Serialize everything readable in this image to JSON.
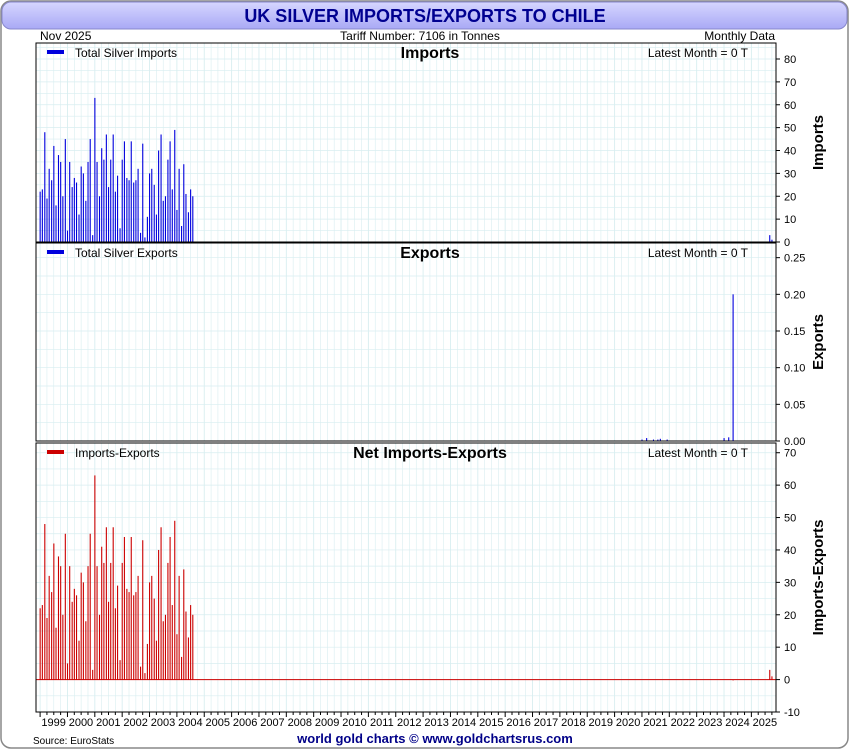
{
  "header": {
    "title": "UK SILVER IMPORTS/EXPORTS TO CHILE",
    "date": "Nov  2025",
    "tariff": "Tariff Number: 7106 in Tonnes",
    "frequency": "Monthly Data"
  },
  "footer": {
    "source": "Source: EuroStats",
    "credit": "world gold charts © www.goldchartsrus.com"
  },
  "colors": {
    "title_bar": "#b8b8ff",
    "title_text": "#000090",
    "imports": "#0000dd",
    "exports": "#0000dd",
    "net": "#cc0000",
    "grid": "#d8eef0"
  },
  "chart_data": [
    {
      "type": "bar",
      "title": "Imports",
      "ylabel": "Imports",
      "legend": "Total Silver Imports",
      "legend_position": "top-left",
      "latest": "Latest Month = 0 T",
      "ylim": [
        0,
        87
      ],
      "yticks": [
        0,
        10,
        20,
        30,
        40,
        50,
        60,
        70,
        80
      ],
      "grid": true,
      "x": [
        1999.0,
        1999.08,
        1999.17,
        1999.25,
        1999.33,
        1999.42,
        1999.5,
        1999.58,
        1999.67,
        1999.75,
        1999.83,
        1999.92,
        2000.0,
        2000.08,
        2000.17,
        2000.25,
        2000.33,
        2000.42,
        2000.5,
        2000.58,
        2000.67,
        2000.75,
        2000.83,
        2000.92,
        2001.0,
        2001.08,
        2001.17,
        2001.25,
        2001.33,
        2001.42,
        2001.5,
        2001.58,
        2001.67,
        2001.75,
        2001.83,
        2001.92,
        2002.0,
        2002.08,
        2002.17,
        2002.25,
        2002.33,
        2002.42,
        2002.5,
        2002.58,
        2002.67,
        2002.75,
        2002.83,
        2002.92,
        2003.0,
        2003.08,
        2003.17,
        2003.25,
        2003.33,
        2003.42,
        2003.5,
        2003.58,
        2003.67,
        2003.75,
        2003.83,
        2003.92,
        2004.0,
        2004.08,
        2004.17,
        2004.25,
        2004.33,
        2004.42,
        2004.5,
        2004.58,
        2025.67,
        2025.75
      ],
      "values": [
        22,
        23,
        48,
        19,
        32,
        27,
        42,
        16,
        38,
        35,
        20,
        45,
        5,
        35,
        24,
        28,
        26,
        12,
        33,
        30,
        18,
        35,
        45,
        3,
        63,
        35,
        20,
        41,
        36,
        47,
        24,
        36,
        47,
        22,
        29,
        6,
        36,
        44,
        28,
        27,
        44,
        26,
        27,
        32,
        4,
        43,
        2,
        11,
        30,
        32,
        25,
        12,
        40,
        47,
        18,
        20,
        36,
        44,
        23,
        49,
        14,
        32,
        7,
        34,
        21,
        13,
        23,
        20,
        3,
        1
      ]
    },
    {
      "type": "bar",
      "title": "Exports",
      "ylabel": "Exports",
      "legend": "Total Silver Exports",
      "legend_position": "top-left",
      "latest": "Latest Month = 0 T",
      "ylim": [
        0,
        0.27
      ],
      "yticks": [
        0.0,
        0.05,
        0.1,
        0.15,
        0.2,
        0.25
      ],
      "ytick_labels": [
        "0.00",
        "0.05",
        "0.10",
        "0.15",
        "0.20",
        "0.25"
      ],
      "grid": true,
      "x": [
        2021.0,
        2021.17,
        2021.42,
        2021.58,
        2021.67,
        2021.92,
        2024.0,
        2024.17,
        2024.33
      ],
      "values": [
        0.002,
        0.004,
        0.002,
        0.002,
        0.003,
        0.002,
        0.004,
        0.005,
        0.2
      ]
    },
    {
      "type": "bar",
      "title": "Net Imports-Exports",
      "ylabel": "Imports-Exports",
      "legend": "Imports-Exports",
      "legend_position": "top-left",
      "latest": "Latest Month = 0 T",
      "ylim": [
        -10,
        73
      ],
      "yticks": [
        -10,
        0,
        10,
        20,
        30,
        40,
        50,
        60,
        70
      ],
      "grid": true,
      "x": [
        1999.0,
        1999.08,
        1999.17,
        1999.25,
        1999.33,
        1999.42,
        1999.5,
        1999.58,
        1999.67,
        1999.75,
        1999.83,
        1999.92,
        2000.0,
        2000.08,
        2000.17,
        2000.25,
        2000.33,
        2000.42,
        2000.5,
        2000.58,
        2000.67,
        2000.75,
        2000.83,
        2000.92,
        2001.0,
        2001.08,
        2001.17,
        2001.25,
        2001.33,
        2001.42,
        2001.5,
        2001.58,
        2001.67,
        2001.75,
        2001.83,
        2001.92,
        2002.0,
        2002.08,
        2002.17,
        2002.25,
        2002.33,
        2002.42,
        2002.5,
        2002.58,
        2002.67,
        2002.75,
        2002.83,
        2002.92,
        2003.0,
        2003.08,
        2003.17,
        2003.25,
        2003.33,
        2003.42,
        2003.5,
        2003.58,
        2003.67,
        2003.75,
        2003.83,
        2003.92,
        2004.0,
        2004.08,
        2004.17,
        2004.25,
        2004.33,
        2004.42,
        2004.5,
        2004.58,
        2024.33,
        2025.67,
        2025.75
      ],
      "values": [
        22,
        23,
        48,
        19,
        32,
        27,
        42,
        16,
        38,
        35,
        20,
        45,
        5,
        35,
        24,
        28,
        26,
        12,
        33,
        30,
        18,
        35,
        45,
        3,
        63,
        35,
        20,
        41,
        36,
        47,
        24,
        36,
        47,
        22,
        29,
        6,
        36,
        44,
        28,
        27,
        44,
        26,
        27,
        32,
        4,
        43,
        2,
        11,
        30,
        32,
        25,
        12,
        40,
        47,
        18,
        20,
        36,
        44,
        23,
        49,
        14,
        32,
        7,
        34,
        21,
        13,
        23,
        20,
        -0.2,
        3,
        1
      ]
    }
  ],
  "x_axis": {
    "xlim": [
      1998.85,
      2025.9
    ],
    "tick_labels": [
      "1999",
      "2000",
      "2001",
      "2002",
      "2003",
      "2004",
      "2005",
      "2006",
      "2007",
      "2008",
      "2009",
      "2010",
      "2011",
      "2012",
      "2013",
      "2014",
      "2015",
      "2016",
      "2017",
      "2018",
      "2019",
      "2020",
      "2021",
      "2022",
      "2023",
      "2024",
      "2025"
    ]
  }
}
